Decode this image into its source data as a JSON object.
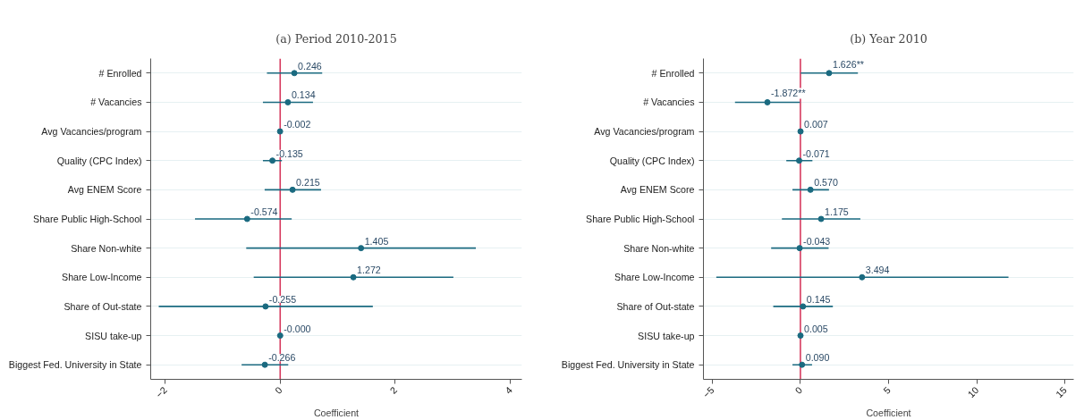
{
  "chart_data": [
    {
      "type": "scatter",
      "orientation": "horizontal",
      "title": "(a) Period 2010-2015",
      "xlabel": "Coefficient",
      "categories": [
        "# Enrolled",
        "# Vacancies",
        "Avg Vacancies/program",
        "Quality (CPC Index)",
        "Avg ENEM Score",
        "Share Public High-School",
        "Share Non-white",
        "Share Low-Income",
        "Share of Out-state",
        "SISU take-up",
        "Biggest Fed. University in State"
      ],
      "series": [
        {
          "color": "#1a6a80",
          "values": [
            0.246,
            0.134,
            -0.002,
            -0.135,
            0.215,
            -0.574,
            1.405,
            1.272,
            -0.255,
            -0.0,
            -0.266
          ],
          "errors": [
            [
              -0.23,
              0.73
            ],
            [
              -0.3,
              0.57
            ],
            null,
            [
              -0.3,
              0.03
            ],
            [
              -0.27,
              0.71
            ],
            [
              -1.48,
              0.2
            ],
            [
              -0.59,
              3.4
            ],
            [
              -0.46,
              3.01
            ],
            [
              -2.11,
              1.61
            ],
            null,
            [
              -0.67,
              0.14
            ]
          ],
          "value_labels": [
            "0.246",
            "0.134",
            "-0.002",
            "-0.135",
            "0.215",
            "-0.574",
            "1.405",
            "1.272",
            "-0.255",
            "-0.000",
            "-0.266"
          ]
        }
      ],
      "xlim": [
        -2.25,
        4.2
      ],
      "xticks": [
        -2,
        0,
        2,
        4
      ],
      "ref_lines": [
        {
          "axis": "x",
          "value": 0,
          "color": "#d63a5e"
        }
      ],
      "grid": "y",
      "marker": "circle"
    },
    {
      "type": "scatter",
      "orientation": "horizontal",
      "title": "(b) Year 2010",
      "xlabel": "Coefficient",
      "categories": [
        "# Enrolled",
        "# Vacancies",
        "Avg Vacancies/program",
        "Quality (CPC Index)",
        "Avg ENEM Score",
        "Share Public High-School",
        "Share Non-white",
        "Share Low-Income",
        "Share of Out-state",
        "SISU take-up",
        "Biggest Fed. University in State"
      ],
      "series": [
        {
          "color": "#1a6a80",
          "values": [
            1.626,
            -1.872,
            0.007,
            -0.071,
            0.57,
            1.175,
            -0.043,
            3.494,
            0.145,
            0.005,
            0.09
          ],
          "errors": [
            [
              0.02,
              3.26
            ],
            [
              -3.71,
              -0.03
            ],
            null,
            [
              -0.8,
              0.68
            ],
            [
              -0.45,
              1.62
            ],
            [
              -1.05,
              3.4
            ],
            [
              -1.66,
              1.6
            ],
            [
              -4.77,
              11.8
            ],
            [
              -1.54,
              1.84
            ],
            null,
            [
              -0.45,
              0.66
            ]
          ],
          "value_labels": [
            "1.626**",
            "-1.872**",
            "0.007",
            "-0.071",
            "0.570",
            "1.175",
            "-0.043",
            "3.494",
            "0.145",
            "0.005",
            "0.090"
          ]
        }
      ],
      "xlim": [
        -5.5,
        15.5
      ],
      "xticks": [
        -5,
        0,
        5,
        10,
        15
      ],
      "ref_lines": [
        {
          "axis": "x",
          "value": 0,
          "color": "#d63a5e"
        }
      ],
      "grid": "y",
      "marker": "circle"
    }
  ]
}
